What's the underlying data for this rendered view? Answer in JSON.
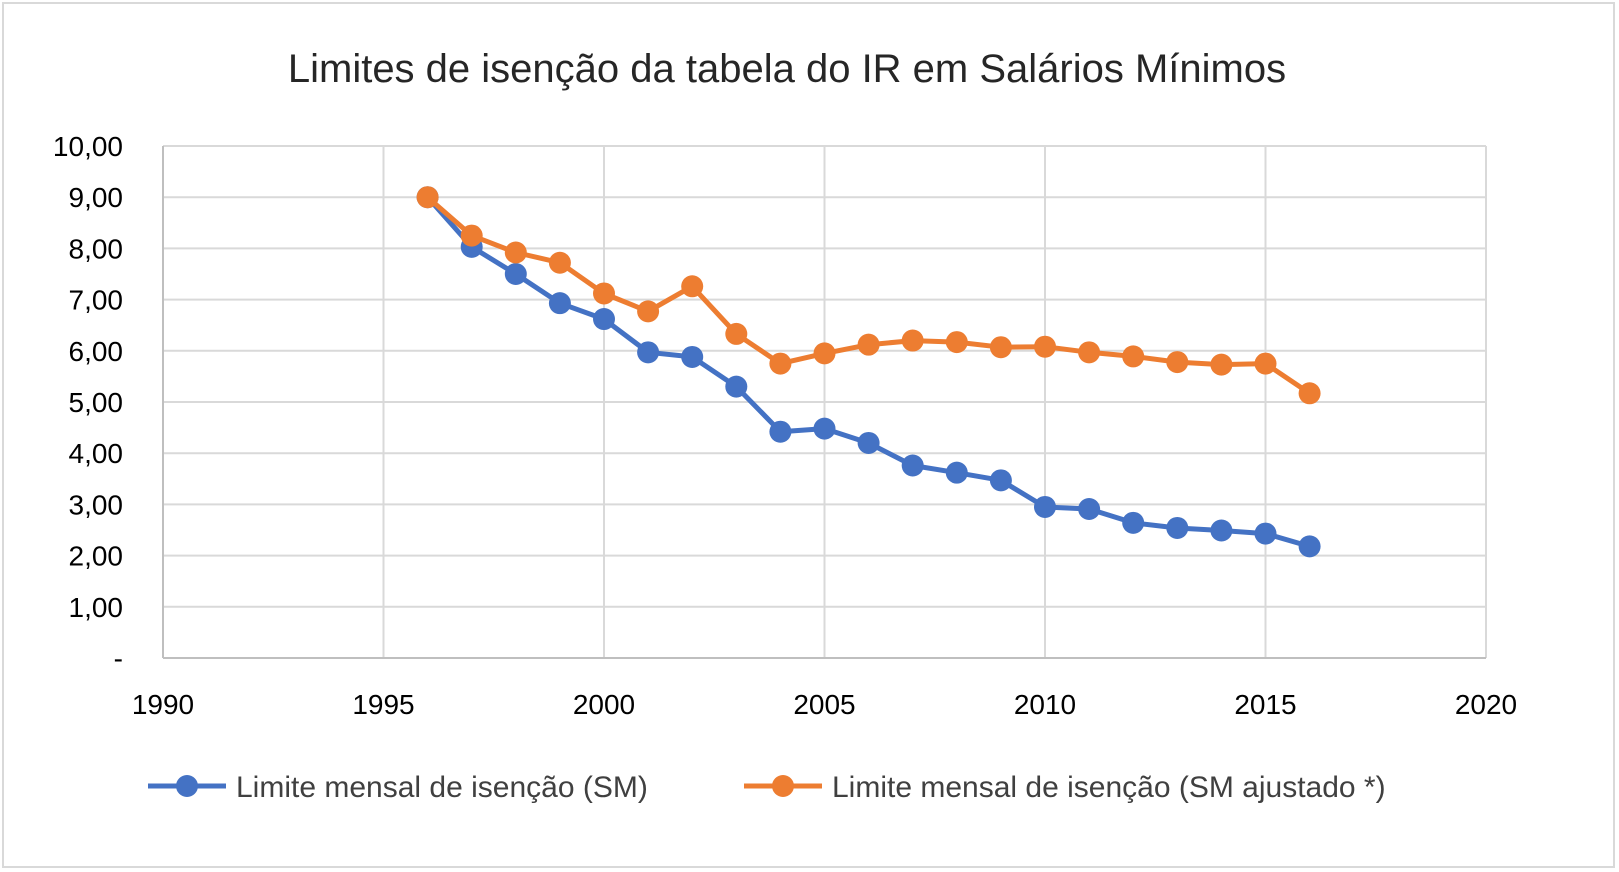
{
  "chart_data": {
    "type": "scatter",
    "title": "Limites de isenção da tabela do IR em Salários Mínimos",
    "xlabel": "",
    "ylabel": "",
    "xlim": [
      1990,
      2020
    ],
    "ylim": [
      0,
      10
    ],
    "x_ticks": [
      1990,
      1995,
      2000,
      2005,
      2010,
      2015,
      2020
    ],
    "y_ticks": [
      0,
      1,
      2,
      3,
      4,
      5,
      6,
      7,
      8,
      9,
      10
    ],
    "y_tick_labels": [
      "-",
      "1,00",
      "2,00",
      "3,00",
      "4,00",
      "5,00",
      "6,00",
      "7,00",
      "8,00",
      "9,00",
      "10,00"
    ],
    "grid": true,
    "legend_position": "bottom",
    "series": [
      {
        "name": "Limite mensal de isenção (SM)",
        "color": "#4472c4",
        "x": [
          1996,
          1997,
          1998,
          1999,
          2000,
          2001,
          2002,
          2003,
          2004,
          2005,
          2006,
          2007,
          2008,
          2009,
          2010,
          2011,
          2012,
          2013,
          2014,
          2015,
          2016
        ],
        "y": [
          9.0,
          8.03,
          7.5,
          6.93,
          6.62,
          5.97,
          5.88,
          5.3,
          4.42,
          4.48,
          4.2,
          3.76,
          3.62,
          3.47,
          2.95,
          2.91,
          2.64,
          2.54,
          2.49,
          2.43,
          2.18
        ]
      },
      {
        "name": "Limite mensal de isenção (SM ajustado *)",
        "color": "#ed7d31",
        "x": [
          1996,
          1997,
          1998,
          1999,
          2000,
          2001,
          2002,
          2003,
          2004,
          2005,
          2006,
          2007,
          2008,
          2009,
          2010,
          2011,
          2012,
          2013,
          2014,
          2015,
          2016
        ],
        "y": [
          9.0,
          8.25,
          7.92,
          7.72,
          7.12,
          6.77,
          7.26,
          6.33,
          5.75,
          5.95,
          6.12,
          6.2,
          6.17,
          6.07,
          6.08,
          5.97,
          5.89,
          5.78,
          5.73,
          5.75,
          5.17
        ]
      }
    ]
  }
}
